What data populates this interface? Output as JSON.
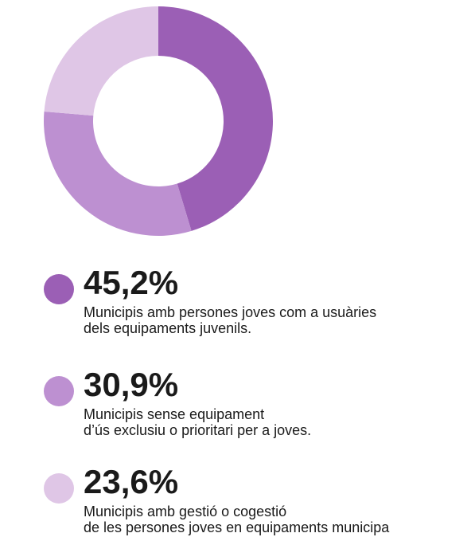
{
  "chart_data": {
    "type": "pie",
    "donut": true,
    "slices": [
      {
        "value": 45.2,
        "label": "45,2%",
        "color": "#9b5fb5",
        "description": [
          "Municipis amb persones joves com a usuàries",
          "dels equipaments juvenils."
        ]
      },
      {
        "value": 30.9,
        "label": "30,9%",
        "color": "#bd90d1",
        "description": [
          "Municipis sense equipament",
          "d’ús exclusiu o prioritari per a joves."
        ]
      },
      {
        "value": 23.6,
        "label": "23,6%",
        "color": "#dfc6e6",
        "description": [
          "Municipis amb gestió o cogestió",
          "de les persones joves en equipaments municipa"
        ]
      }
    ]
  }
}
